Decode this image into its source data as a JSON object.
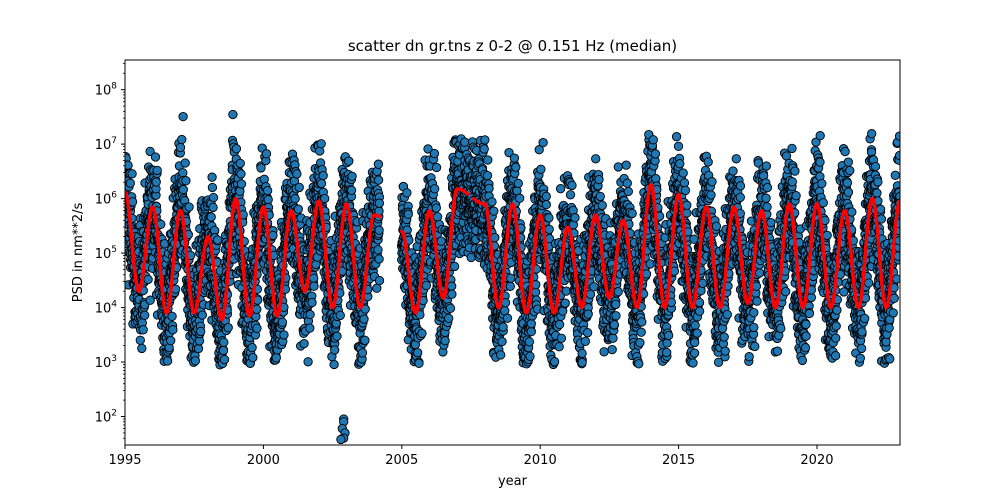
{
  "chart_data": {
    "type": "scatter",
    "title": "scatter dn gr.tns z 0-2 @ 0.151 Hz (median)",
    "xlabel": "year",
    "ylabel": "PSD in nm**2/s",
    "xlim": [
      1995,
      2023
    ],
    "ylim": [
      30,
      350000000
    ],
    "yscale": "log",
    "grid": false,
    "x_ticks": [
      1995,
      2000,
      2005,
      2010,
      2015,
      2020
    ],
    "x_tick_labels": [
      "1995",
      "2000",
      "2005",
      "2010",
      "2015",
      "2020"
    ],
    "y_ticks": [
      100,
      1000,
      10000,
      100000,
      1000000,
      10000000,
      100000000
    ],
    "y_tick_exponents": [
      "2",
      "3",
      "4",
      "5",
      "6",
      "7",
      "8"
    ],
    "y_tick_base": "10",
    "series": [
      {
        "kind": "scatter",
        "color": "#1f77b4",
        "edgecolor": "#000000",
        "segments": [
          [
            1995.0,
            2004.2
          ],
          [
            2005.0,
            2023.0
          ]
        ],
        "seasonal_peak_phase": 0.95,
        "annual_summer_median_level": 10000,
        "annual_winter_median_level": 600000,
        "outliers": [
          [
            1997.1,
            32000000
          ],
          [
            1998.9,
            35000000
          ],
          [
            2002.9,
            90
          ],
          [
            2002.9,
            80
          ],
          [
            2002.85,
            60
          ],
          [
            2002.95,
            50
          ],
          [
            2002.9,
            40
          ],
          [
            2002.8,
            38
          ]
        ]
      },
      {
        "kind": "line",
        "color": "#ff0000",
        "segments": [
          [
            1995.0,
            2004.2
          ],
          [
            2005.0,
            2007.4
          ],
          [
            2007.6,
            2023.0
          ]
        ],
        "peaks": [
          [
            1995.0,
            1300000
          ],
          [
            1996.0,
            700000
          ],
          [
            1997.0,
            600000
          ],
          [
            1998.0,
            200000
          ],
          [
            1999.0,
            1000000
          ],
          [
            2000.0,
            700000
          ],
          [
            2001.0,
            600000
          ],
          [
            2002.0,
            900000
          ],
          [
            2003.0,
            800000
          ],
          [
            2004.0,
            500000
          ],
          [
            2005.0,
            250000
          ],
          [
            2006.0,
            600000
          ],
          [
            2007.0,
            1500000
          ],
          [
            2008.0,
            800000
          ],
          [
            2009.0,
            800000
          ],
          [
            2010.0,
            500000
          ],
          [
            2011.0,
            300000
          ],
          [
            2012.0,
            500000
          ],
          [
            2013.0,
            400000
          ],
          [
            2014.0,
            1800000
          ],
          [
            2015.0,
            1200000
          ],
          [
            2016.0,
            700000
          ],
          [
            2017.0,
            700000
          ],
          [
            2018.0,
            600000
          ],
          [
            2019.0,
            800000
          ],
          [
            2020.0,
            800000
          ],
          [
            2021.0,
            600000
          ],
          [
            2022.0,
            1000000
          ],
          [
            2023.0,
            900000
          ]
        ],
        "troughs": [
          [
            1995.5,
            20000
          ],
          [
            1996.5,
            8000
          ],
          [
            1997.5,
            8000
          ],
          [
            1998.5,
            6000
          ],
          [
            1999.5,
            7000
          ],
          [
            2000.5,
            7000
          ],
          [
            2001.5,
            20000
          ],
          [
            2002.5,
            10000
          ],
          [
            2003.5,
            10000
          ],
          [
            2005.5,
            8000
          ],
          [
            2006.5,
            15000
          ],
          [
            2008.5,
            10000
          ],
          [
            2009.5,
            8000
          ],
          [
            2010.5,
            8000
          ],
          [
            2011.5,
            10000
          ],
          [
            2012.5,
            15000
          ],
          [
            2013.5,
            10000
          ],
          [
            2014.5,
            10000
          ],
          [
            2015.5,
            10000
          ],
          [
            2016.5,
            10000
          ],
          [
            2017.5,
            12000
          ],
          [
            2018.5,
            10000
          ],
          [
            2019.5,
            10000
          ],
          [
            2020.5,
            10000
          ],
          [
            2021.5,
            10000
          ],
          [
            2022.5,
            10000
          ]
        ]
      }
    ]
  }
}
